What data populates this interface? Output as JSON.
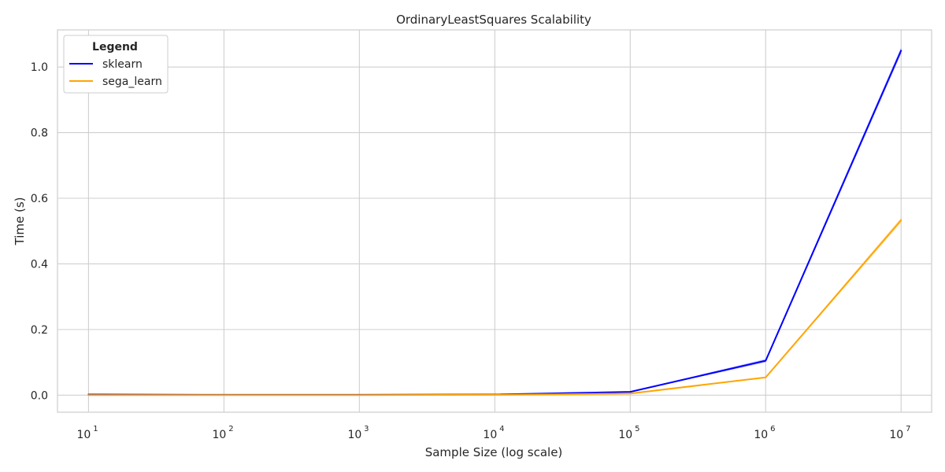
{
  "chart_data": {
    "type": "line",
    "title": "OrdinaryLeastSquares Scalability",
    "xlabel": "Sample Size (log scale)",
    "ylabel": "Time (s)",
    "xscale": "log",
    "x": [
      10,
      100,
      1000,
      10000,
      100000,
      1000000,
      10000000
    ],
    "xticks": [
      {
        "base": "10",
        "exp": "1"
      },
      {
        "base": "10",
        "exp": "2"
      },
      {
        "base": "10",
        "exp": "3"
      },
      {
        "base": "10",
        "exp": "4"
      },
      {
        "base": "10",
        "exp": "5"
      },
      {
        "base": "10",
        "exp": "6"
      },
      {
        "base": "10",
        "exp": "7"
      }
    ],
    "xlim": [
      5.9,
      16800000
    ],
    "ylim": [
      -0.052,
      1.113
    ],
    "yticks": [
      "0.0",
      "0.2",
      "0.4",
      "0.6",
      "0.8",
      "1.0"
    ],
    "ytick_values": [
      0.0,
      0.2,
      0.4,
      0.6,
      0.8,
      1.0
    ],
    "grid": true,
    "legend": {
      "title": "Legend",
      "placement": "top-left"
    },
    "series": [
      {
        "name": "sklearn",
        "color": "#0000ff",
        "values": [
          0.002,
          0.001,
          0.001,
          0.002,
          0.01,
          0.105,
          1.05
        ],
        "lower": [
          0.0015,
          0.0008,
          0.0008,
          0.0015,
          0.009,
          0.1,
          1.04
        ],
        "upper": [
          0.0025,
          0.0012,
          0.0012,
          0.0025,
          0.011,
          0.11,
          1.06
        ]
      },
      {
        "name": "sega_learn",
        "color": "#ffa500",
        "values": [
          0.0,
          0.0,
          0.0,
          0.001,
          0.005,
          0.054,
          0.533
        ],
        "lower": [
          0.0,
          0.0,
          0.0,
          0.0008,
          0.004,
          0.052,
          0.525
        ],
        "upper": [
          0.0005,
          0.0005,
          0.0005,
          0.0012,
          0.006,
          0.056,
          0.541
        ]
      }
    ]
  }
}
